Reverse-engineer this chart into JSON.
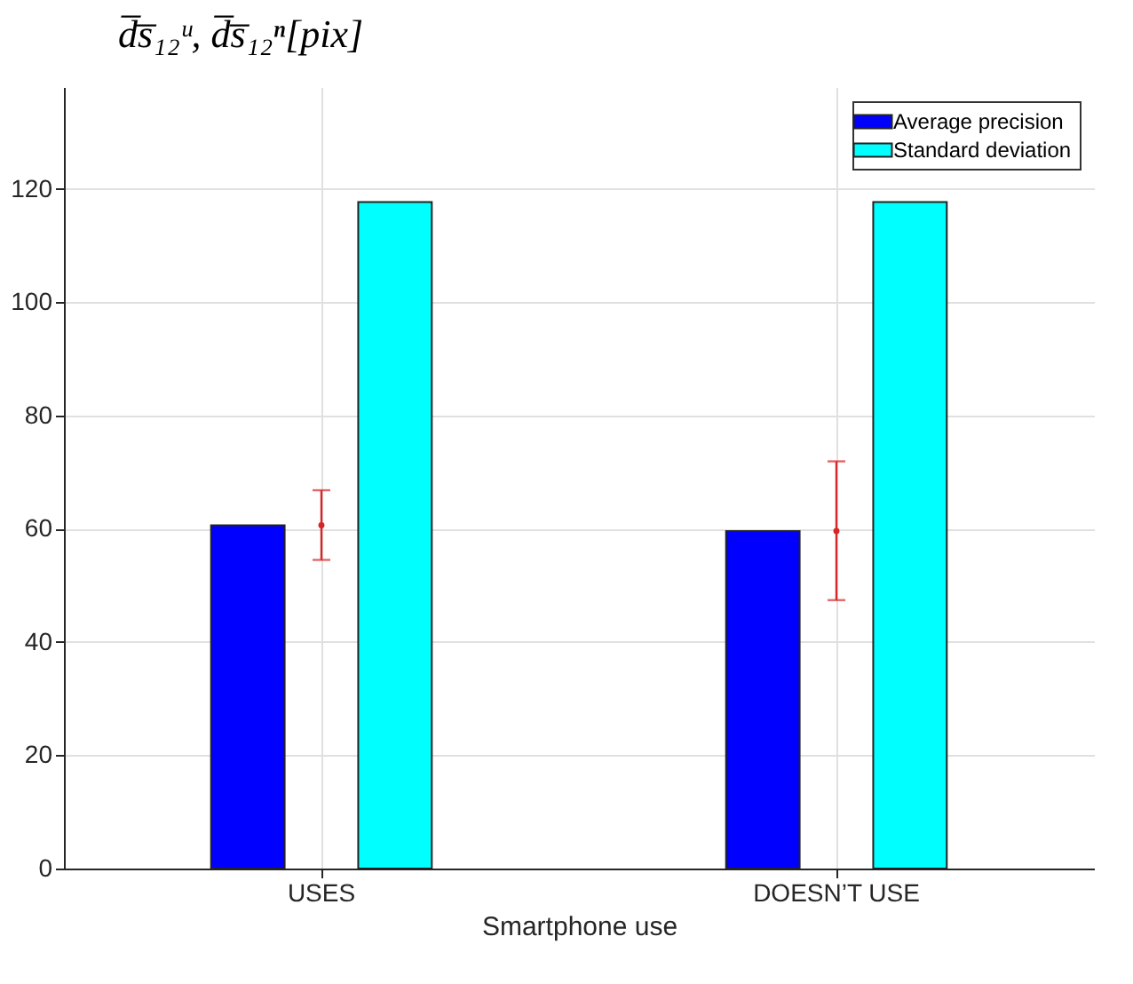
{
  "chart_data": {
    "type": "bar",
    "xlabel": "Smartphone use",
    "ylabel": "d̅s̅₁₂ᵘ, d̅s̅₁₂ⁿ[pix]",
    "categories": [
      "USES",
      "DOESN’T USE"
    ],
    "series": [
      {
        "name": "Average precision",
        "color": "#0000ff",
        "values": [
          60.6,
          59.6
        ]
      },
      {
        "name": "Standard deviation",
        "color": "#00ffff",
        "values": [
          117.7,
          117.7
        ]
      },
      {
        "type": "scatter",
        "color": "#d62728",
        "x": [
          "USES",
          "DOESN’T USE"
        ],
        "values": [
          60.6,
          59.6
        ],
        "errors": [
          [
            54.5,
            66.8
          ],
          [
            47.4,
            71.9
          ]
        ],
        "marker": "circle"
      }
    ],
    "ylim": [
      0,
      138
    ],
    "yticks": [
      0,
      20,
      40,
      60,
      80,
      100,
      120
    ],
    "grid": true,
    "legend": "top right"
  }
}
